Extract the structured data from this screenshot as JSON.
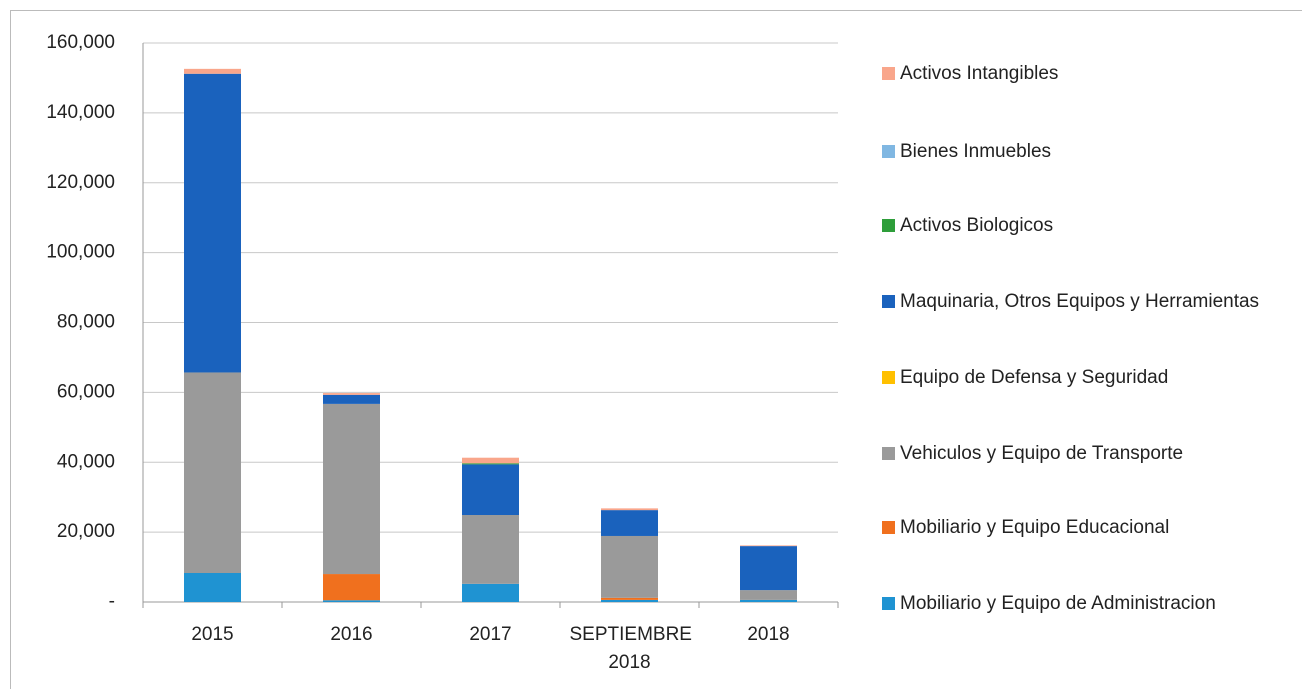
{
  "chart_data": {
    "type": "stacked_bar",
    "categories": [
      "2015",
      "2016",
      "2017",
      "SEPTIEMBRE 2018",
      "2018"
    ],
    "series": [
      {
        "name": "Mobiliario y Equipo de Administracion",
        "color": "#1f93d2",
        "values": [
          8300,
          500,
          5200,
          600,
          600
        ]
      },
      {
        "name": "Mobiliario y Equipo Educacional",
        "color": "#f0701e",
        "values": [
          0,
          7500,
          0,
          600,
          0
        ]
      },
      {
        "name": "Vehiculos y Equipo de Transporte",
        "color": "#9a9a9a",
        "values": [
          57400,
          48700,
          19700,
          17700,
          2800
        ]
      },
      {
        "name": "Equipo de Defensa y Seguridad",
        "color": "#ffc000",
        "values": [
          0,
          0,
          0,
          0,
          0
        ]
      },
      {
        "name": "Maquinaria, Otros Equipos y Herramientas",
        "color": "#1a62bd",
        "values": [
          85500,
          2600,
          14500,
          7400,
          12600
        ]
      },
      {
        "name": "Activos Biologicos",
        "color": "#2e9e3a",
        "values": [
          0,
          0,
          300,
          0,
          0
        ]
      },
      {
        "name": "Bienes Inmuebles",
        "color": "#80b7e2",
        "values": [
          0,
          0,
          0,
          0,
          0
        ]
      },
      {
        "name": "Activos Intangibles",
        "color": "#f9a68b",
        "values": [
          1400,
          500,
          1600,
          500,
          200
        ]
      }
    ],
    "ylim": [
      0,
      160000
    ],
    "yticks": [
      {
        "value": 0,
        "label": "-"
      },
      {
        "value": 20000,
        "label": "20,000"
      },
      {
        "value": 40000,
        "label": "40,000"
      },
      {
        "value": 60000,
        "label": "60,000"
      },
      {
        "value": 80000,
        "label": "80,000"
      },
      {
        "value": 100000,
        "label": "100,000"
      },
      {
        "value": 120000,
        "label": "120,000"
      },
      {
        "value": 140000,
        "label": "140,000"
      },
      {
        "value": 160000,
        "label": "160,000"
      }
    ],
    "grid": true,
    "legend": "right"
  }
}
